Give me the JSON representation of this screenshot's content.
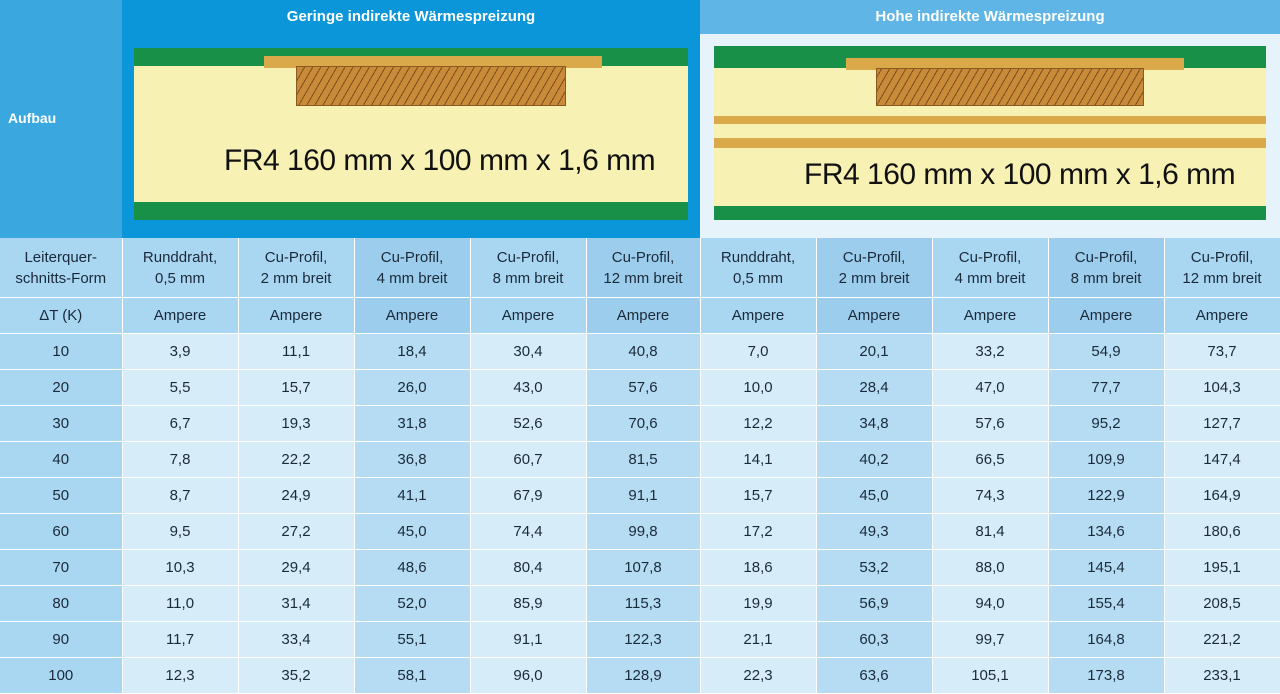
{
  "header": {
    "row_label": "Aufbau",
    "left_title": "Geringe indirekte Wärmespreizung",
    "right_title": "Hohe indirekte Wärmespreizung",
    "left_board_text": "FR4 160 mm x 100 mm x 1,6 mm",
    "right_board_text": "FR4 160 mm x 100 mm x 1,6 mm"
  },
  "table": {
    "columns": [
      "Leiterquer-\nschnitts-Form",
      "Runddraht,\n0,5 mm",
      "Cu-Profil,\n2 mm breit",
      "Cu-Profil,\n4 mm breit",
      "Cu-Profil,\n8 mm breit",
      "Cu-Profil,\n12 mm breit",
      "Runddraht,\n0,5 mm",
      "Cu-Profil,\n2 mm breit",
      "Cu-Profil,\n4 mm breit",
      "Cu-Profil,\n8 mm breit",
      "Cu-Profil,\n12 mm breit"
    ],
    "unit_row": [
      "ΔT (K)",
      "Ampere",
      "Ampere",
      "Ampere",
      "Ampere",
      "Ampere",
      "Ampere",
      "Ampere",
      "Ampere",
      "Ampere",
      "Ampere"
    ],
    "rows": [
      [
        "10",
        "3,9",
        "11,1",
        "18,4",
        "30,4",
        "40,8",
        "7,0",
        "20,1",
        "33,2",
        "54,9",
        "73,7"
      ],
      [
        "20",
        "5,5",
        "15,7",
        "26,0",
        "43,0",
        "57,6",
        "10,0",
        "28,4",
        "47,0",
        "77,7",
        "104,3"
      ],
      [
        "30",
        "6,7",
        "19,3",
        "31,8",
        "52,6",
        "70,6",
        "12,2",
        "34,8",
        "57,6",
        "95,2",
        "127,7"
      ],
      [
        "40",
        "7,8",
        "22,2",
        "36,8",
        "60,7",
        "81,5",
        "14,1",
        "40,2",
        "66,5",
        "109,9",
        "147,4"
      ],
      [
        "50",
        "8,7",
        "24,9",
        "41,1",
        "67,9",
        "91,1",
        "15,7",
        "45,0",
        "74,3",
        "122,9",
        "164,9"
      ],
      [
        "60",
        "9,5",
        "27,2",
        "45,0",
        "74,4",
        "99,8",
        "17,2",
        "49,3",
        "81,4",
        "134,6",
        "180,6"
      ],
      [
        "70",
        "10,3",
        "29,4",
        "48,6",
        "80,4",
        "107,8",
        "18,6",
        "53,2",
        "88,0",
        "145,4",
        "195,1"
      ],
      [
        "80",
        "11,0",
        "31,4",
        "52,0",
        "85,9",
        "115,3",
        "19,9",
        "56,9",
        "94,0",
        "155,4",
        "208,5"
      ],
      [
        "90",
        "11,7",
        "33,4",
        "55,1",
        "91,1",
        "122,3",
        "21,1",
        "60,3",
        "99,7",
        "164,8",
        "221,2"
      ],
      [
        "100",
        "12,3",
        "35,2",
        "58,1",
        "96,0",
        "128,9",
        "22,3",
        "63,6",
        "105,1",
        "173,8",
        "233,1"
      ]
    ]
  },
  "colors": {
    "header_blue": "#0a96d9",
    "header_light_blue": "#5fb6e6",
    "pcb_green": "#189047",
    "fr4_yellow": "#f7f2b4",
    "copper": "#d9a94a"
  }
}
